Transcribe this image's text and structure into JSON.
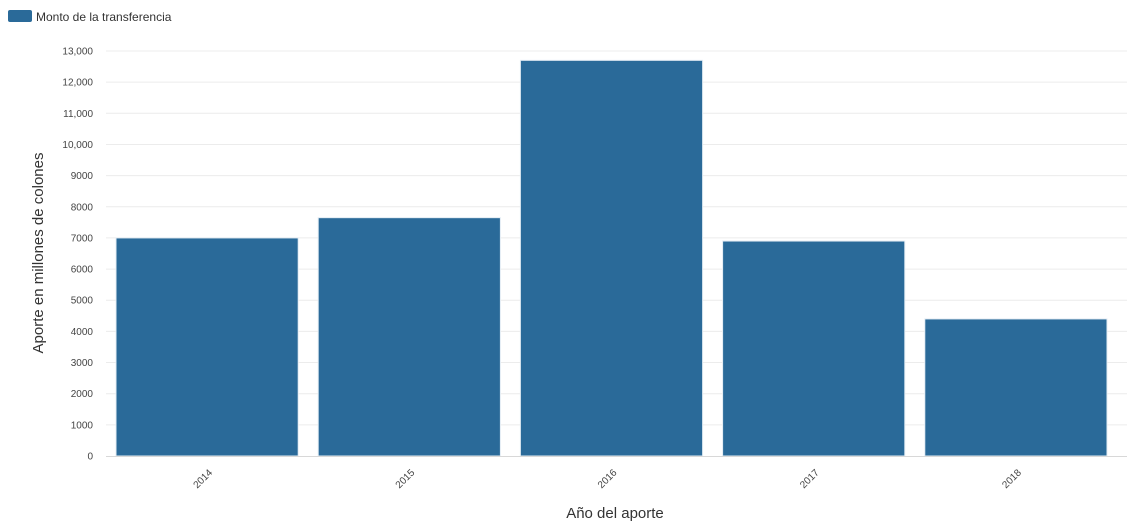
{
  "chart_data": {
    "type": "bar",
    "categories": [
      "2014",
      "2015",
      "2016",
      "2017",
      "2018"
    ],
    "series": [
      {
        "name": "Monto de la transferencia",
        "values": [
          7000,
          7650,
          12700,
          6900,
          4400
        ],
        "color": "#2a6a99"
      }
    ],
    "xlabel": "Año del aporte",
    "ylabel": "Aporte en millones de colones",
    "ylim": [
      0,
      13000
    ],
    "yticks": [
      0,
      1000,
      2000,
      3000,
      4000,
      5000,
      6000,
      7000,
      8000,
      9000,
      10000,
      11000,
      12000,
      13000
    ],
    "ytick_labels": [
      "0",
      "1000",
      "2000",
      "3000",
      "4000",
      "5000",
      "6000",
      "7000",
      "8000",
      "9000",
      "10,000",
      "11,000",
      "12,000",
      "13,000"
    ],
    "grid": true,
    "legend_position": "top-left"
  }
}
